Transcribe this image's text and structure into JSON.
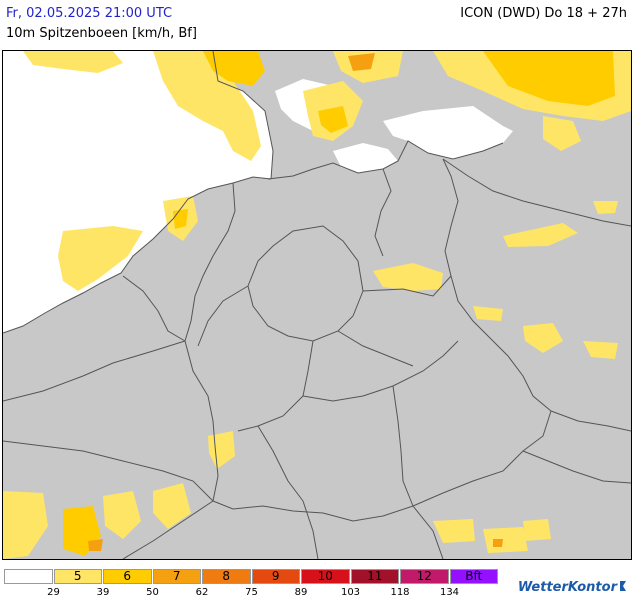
{
  "header": {
    "datetime": "Fr, 02.05.2025 21:00 UTC",
    "model": "ICON (DWD) Do 18 + 27h",
    "parameter": "10m Spitzenboeen [km/h, Bf]"
  },
  "legend": {
    "bins": [
      {
        "label": "",
        "color": "#ffffff"
      },
      {
        "label": "5",
        "color": "#ffe566"
      },
      {
        "label": "6",
        "color": "#ffcc00"
      },
      {
        "label": "7",
        "color": "#f5a010"
      },
      {
        "label": "8",
        "color": "#f07b10"
      },
      {
        "label": "9",
        "color": "#e44a10"
      },
      {
        "label": "10",
        "color": "#d6111a"
      },
      {
        "label": "11",
        "color": "#a1112a"
      },
      {
        "label": "12",
        "color": "#c11a6a"
      },
      {
        "label": "Bft",
        "color": "#9410ff"
      }
    ],
    "ticks": [
      "29",
      "39",
      "50",
      "62",
      "75",
      "89",
      "103",
      "118",
      "134"
    ]
  },
  "brand": {
    "name": "WetterKontor",
    "accent": "#1d5aa8"
  },
  "map": {
    "land_color": "#c8c8c8",
    "sea_color": "#ffffff",
    "border_color": "#555555"
  }
}
